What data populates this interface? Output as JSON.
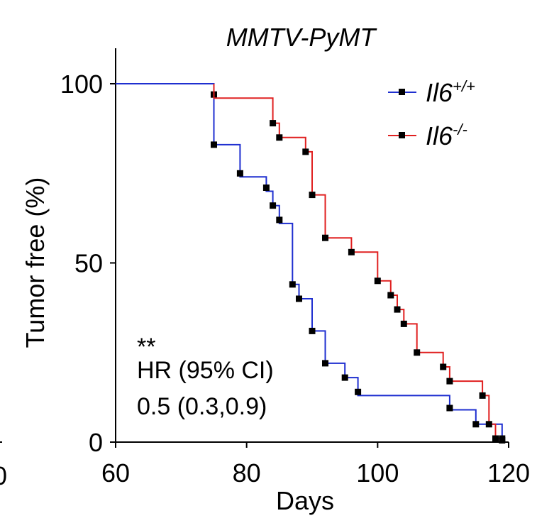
{
  "chart_data": {
    "type": "line",
    "title": "MMTV-PyMT",
    "xlabel": "Days",
    "ylabel": "Tumor free (%)",
    "xlim": [
      60,
      120
    ],
    "ylim": [
      0,
      110
    ],
    "x_ticks": [
      "60",
      "80",
      "100",
      "120"
    ],
    "y_ticks": [
      "0",
      "50",
      "100"
    ],
    "clipped_tick_labels": [
      "0"
    ],
    "legend_position": "top-right",
    "series": [
      {
        "name": "Il6",
        "superscript": "+/+",
        "color": "#1f2fd0",
        "steps": [
          [
            60,
            100
          ],
          [
            75,
            100
          ],
          [
            75,
            83
          ],
          [
            79,
            83
          ],
          [
            79,
            74
          ],
          [
            83,
            74
          ],
          [
            83,
            70
          ],
          [
            84,
            70
          ],
          [
            84,
            66
          ],
          [
            85,
            66
          ],
          [
            85,
            61
          ],
          [
            87,
            61
          ],
          [
            87,
            44
          ],
          [
            88,
            44
          ],
          [
            88,
            40
          ],
          [
            90,
            40
          ],
          [
            90,
            31
          ],
          [
            92,
            31
          ],
          [
            92,
            22
          ],
          [
            95,
            22
          ],
          [
            95,
            18
          ],
          [
            97,
            18
          ],
          [
            97,
            13
          ],
          [
            111,
            13
          ],
          [
            111,
            9
          ],
          [
            115,
            9
          ],
          [
            115,
            5
          ],
          [
            119,
            5
          ],
          [
            119,
            0
          ]
        ],
        "censored": [
          [
            75,
            97
          ],
          [
            75,
            83
          ],
          [
            79,
            75
          ],
          [
            83,
            71
          ],
          [
            84,
            66
          ],
          [
            85,
            62
          ],
          [
            87,
            44
          ],
          [
            88,
            40
          ],
          [
            90,
            31
          ],
          [
            92,
            22
          ],
          [
            95,
            18
          ],
          [
            97,
            14
          ],
          [
            111,
            9.5
          ],
          [
            115,
            5
          ],
          [
            119,
            0.5
          ]
        ]
      },
      {
        "name": "Il6",
        "superscript": "-/-",
        "color": "#e02020",
        "steps": [
          [
            75,
            100
          ],
          [
            75,
            96
          ],
          [
            84,
            96
          ],
          [
            84,
            89
          ],
          [
            85,
            89
          ],
          [
            85,
            85
          ],
          [
            89,
            85
          ],
          [
            89,
            81
          ],
          [
            90,
            81
          ],
          [
            90,
            69
          ],
          [
            92,
            69
          ],
          [
            92,
            57
          ],
          [
            96,
            57
          ],
          [
            96,
            53
          ],
          [
            100,
            53
          ],
          [
            100,
            45
          ],
          [
            102,
            45
          ],
          [
            102,
            41
          ],
          [
            103,
            41
          ],
          [
            103,
            37
          ],
          [
            104,
            37
          ],
          [
            104,
            33
          ],
          [
            106,
            33
          ],
          [
            106,
            25
          ],
          [
            110,
            25
          ],
          [
            110,
            21
          ],
          [
            111,
            21
          ],
          [
            111,
            17
          ],
          [
            116,
            17
          ],
          [
            116,
            13
          ],
          [
            117,
            13
          ],
          [
            117,
            5
          ],
          [
            118,
            5
          ],
          [
            118,
            1
          ],
          [
            119,
            1
          ]
        ],
        "censored": [
          [
            84,
            89
          ],
          [
            85,
            85
          ],
          [
            89,
            81
          ],
          [
            90,
            69
          ],
          [
            92,
            57
          ],
          [
            96,
            53
          ],
          [
            100,
            45
          ],
          [
            102,
            41
          ],
          [
            103,
            37
          ],
          [
            104,
            33
          ],
          [
            106,
            25
          ],
          [
            110,
            21
          ],
          [
            111,
            17
          ],
          [
            116,
            13
          ],
          [
            117,
            5
          ],
          [
            118,
            1
          ],
          [
            119,
            1
          ]
        ]
      }
    ],
    "annotations": {
      "significance": "**",
      "hr_label": "HR (95% CI)",
      "hr_value": "0.5 (0.3,0.9)"
    }
  }
}
